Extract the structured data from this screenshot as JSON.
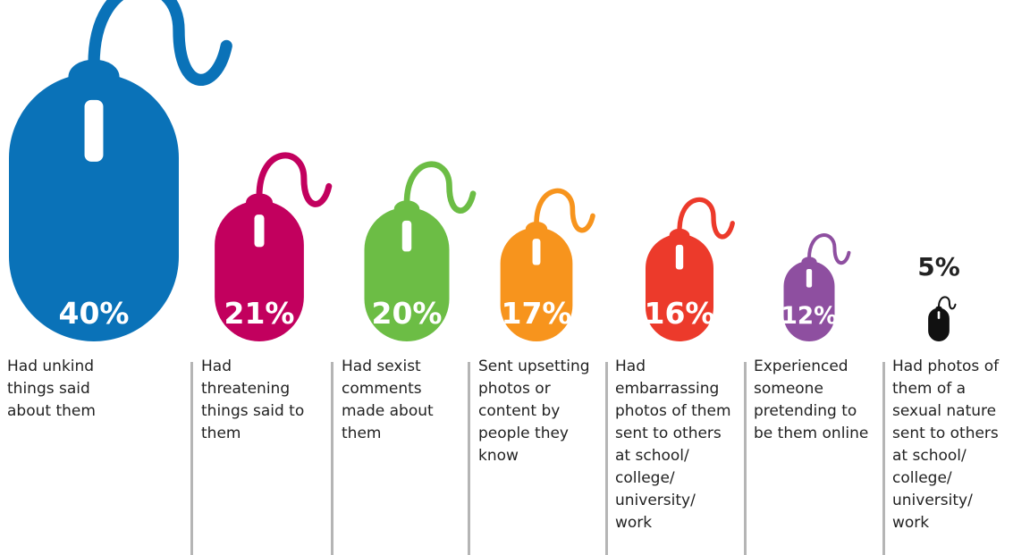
{
  "chart_data": {
    "type": "pictograph",
    "categories": [
      "Had unkind things said about them",
      "Had threatening things said to them",
      "Had sexist comments made about them",
      "Sent upsetting photos or content by people they know",
      "Had embarrassing photos of them sent to others at school/ college/ university/ work",
      "Experienced someone pretending to be them online",
      "Had photos of them of a sexual nature sent to others at school/ college/ university/ work"
    ],
    "values": [
      40,
      21,
      20,
      17,
      16,
      12,
      5
    ],
    "value_labels": [
      "40%",
      "21%",
      "20%",
      "17%",
      "16%",
      "12%",
      "5%"
    ],
    "colors": [
      "#0a72b8",
      "#c2005e",
      "#6cbd45",
      "#f7941d",
      "#ec3a2b",
      "#8e4fa0",
      "#111111"
    ]
  }
}
